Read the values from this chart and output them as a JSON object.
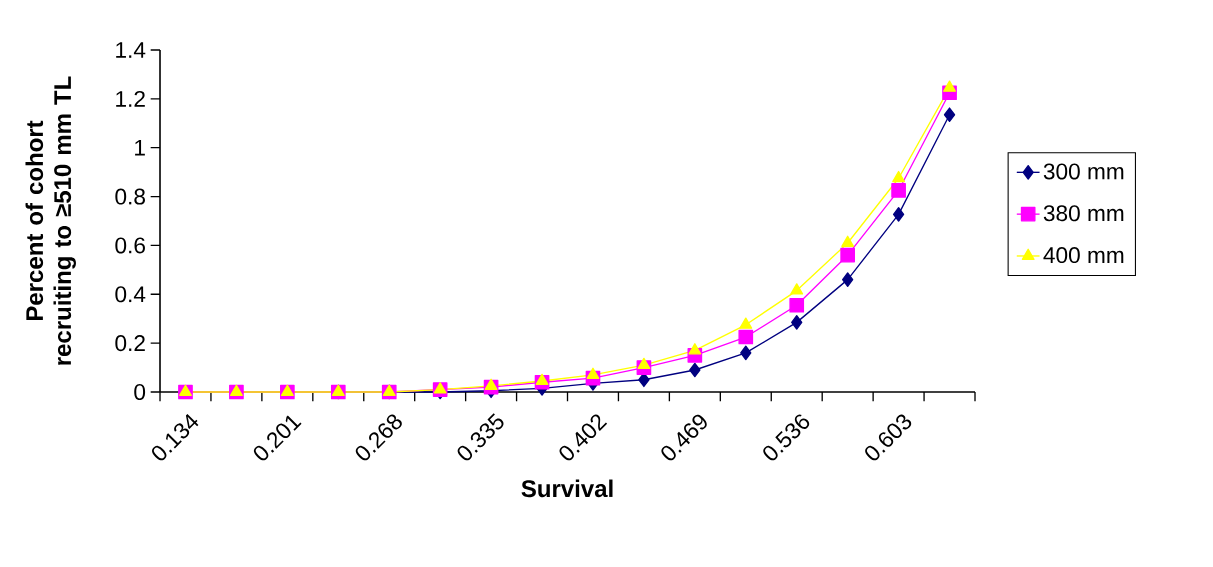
{
  "chart_data": {
    "type": "line",
    "xlabel": "Survival",
    "ylabel": "Percent of cohort recruiting to ≥510 mm TL",
    "categories": [
      "0.134",
      null,
      "0.201",
      null,
      "0.268",
      null,
      "0.335",
      null,
      "0.402",
      null,
      "0.469",
      null,
      "0.536",
      null,
      "0.603",
      null
    ],
    "series": [
      {
        "name": "300 mm",
        "color": "#000080",
        "marker": "diamond",
        "values": [
          null,
          null,
          null,
          0,
          0,
          0,
          0.005,
          0.015,
          0.035,
          0.05,
          0.09,
          0.16,
          0.285,
          0.46,
          0.727,
          1.135
        ]
      },
      {
        "name": "380 mm",
        "color": "#ff00ff",
        "marker": "square",
        "values": [
          0,
          0,
          0,
          0,
          0,
          0.01,
          0.02,
          0.04,
          0.057,
          0.1,
          0.15,
          0.225,
          0.355,
          0.56,
          0.825,
          1.225
        ]
      },
      {
        "name": "400 mm",
        "color": "#ffff00",
        "marker": "triangle",
        "values": [
          0,
          0,
          0,
          0,
          0,
          0.01,
          0.025,
          0.045,
          0.07,
          0.11,
          0.17,
          0.275,
          0.415,
          0.61,
          0.875,
          1.245
        ]
      }
    ],
    "ylim": [
      0,
      1.4
    ],
    "yticks": [
      0,
      0.2,
      0.4,
      0.6,
      0.8,
      1,
      1.2,
      1.4
    ],
    "grid": false,
    "legend": "right",
    "line_style": "solid"
  }
}
